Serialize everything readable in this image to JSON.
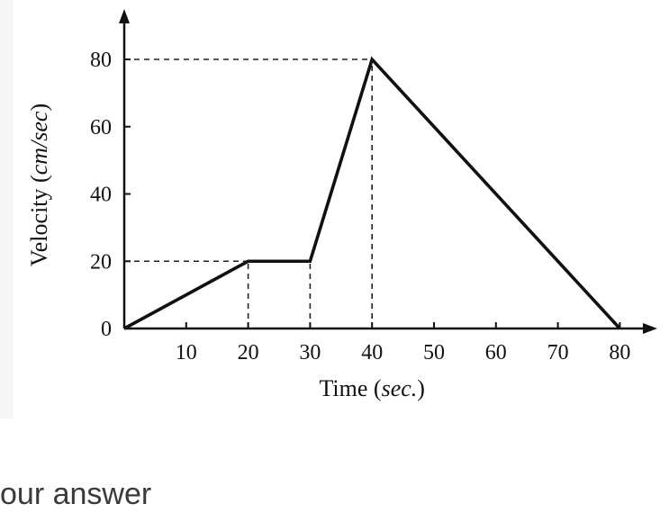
{
  "chart_data": {
    "type": "line",
    "xlabel": "Time",
    "xlabel_unit": "sec.",
    "ylabel": "Velocity",
    "ylabel_unit": "cm/sec",
    "x_ticks": [
      10,
      20,
      30,
      40,
      50,
      60,
      70,
      80
    ],
    "y_ticks": [
      0,
      20,
      40,
      60,
      80
    ],
    "xlim": [
      0,
      82
    ],
    "ylim": [
      0,
      90
    ],
    "grid": false,
    "series": [
      {
        "x": [
          0,
          20,
          30,
          40,
          80
        ],
        "y": [
          0,
          20,
          20,
          80,
          0
        ]
      }
    ],
    "reference_lines": [
      {
        "axis": "y",
        "value": 80,
        "until_x": 40
      },
      {
        "axis": "y",
        "value": 20,
        "until_x": 20
      },
      {
        "axis": "x",
        "value": 20,
        "until_y": 20
      },
      {
        "axis": "x",
        "value": 30,
        "until_y": 20
      },
      {
        "axis": "x",
        "value": 40,
        "until_y": 80
      }
    ]
  },
  "footer": {
    "text": "our answer"
  }
}
